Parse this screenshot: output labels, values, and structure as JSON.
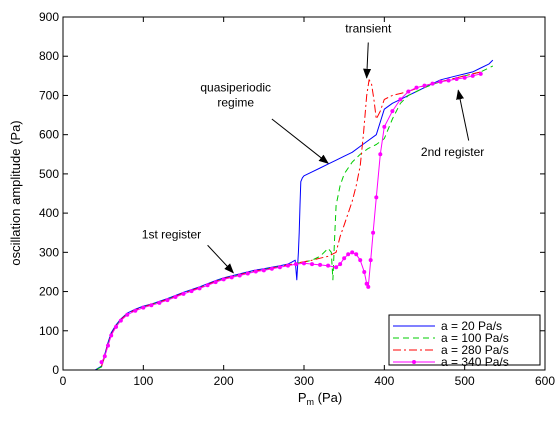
{
  "chart_data": {
    "type": "line",
    "xlabel_main": "P",
    "xlabel_sub": "m",
    "xlabel_unit": " (Pa)",
    "ylabel": "oscillation amplitude (Pa)",
    "xlim": [
      0,
      600
    ],
    "ylim": [
      0,
      900
    ],
    "xticks": [
      0,
      100,
      200,
      300,
      400,
      500,
      600
    ],
    "yticks": [
      0,
      100,
      200,
      300,
      400,
      500,
      600,
      700,
      800,
      900
    ],
    "grid": false,
    "legend_position": "bottom-right",
    "series": [
      {
        "name": "a = 20 Pa/s",
        "color": "#0000ff",
        "dash": "solid",
        "marker": "none",
        "x": [
          30,
          40,
          48,
          52,
          56,
          60,
          66,
          72,
          80,
          90,
          100,
          110,
          120,
          130,
          140,
          150,
          160,
          170,
          180,
          190,
          200,
          210,
          220,
          230,
          240,
          250,
          260,
          270,
          280,
          285,
          289,
          291,
          293,
          294,
          295,
          296,
          298,
          300,
          310,
          320,
          330,
          340,
          350,
          360,
          370,
          380,
          390,
          400,
          410,
          420,
          430,
          440,
          450,
          460,
          470,
          480,
          490,
          500,
          510,
          520,
          530,
          535
        ],
        "y": [
          0,
          0,
          10,
          40,
          70,
          95,
          115,
          130,
          145,
          155,
          163,
          168,
          175,
          182,
          190,
          198,
          205,
          212,
          220,
          228,
          235,
          240,
          245,
          250,
          255,
          258,
          262,
          266,
          270,
          275,
          280,
          230,
          300,
          350,
          420,
          480,
          490,
          495,
          505,
          515,
          525,
          535,
          545,
          555,
          570,
          585,
          600,
          665,
          680,
          690,
          700,
          710,
          720,
          730,
          740,
          745,
          750,
          755,
          760,
          770,
          780,
          790
        ]
      },
      {
        "name": "a = 100 Pa/s",
        "color": "#00cc00",
        "dash": "6,4",
        "marker": "none",
        "x": [
          30,
          40,
          48,
          52,
          56,
          60,
          66,
          72,
          80,
          90,
          100,
          110,
          120,
          130,
          140,
          150,
          160,
          170,
          180,
          190,
          200,
          210,
          220,
          230,
          240,
          250,
          260,
          270,
          280,
          290,
          300,
          310,
          320,
          330,
          334,
          336,
          338,
          340,
          345,
          350,
          360,
          370,
          380,
          390,
          400,
          410,
          420,
          430,
          440,
          450,
          460,
          470,
          480,
          490,
          500,
          510,
          520,
          530,
          535
        ],
        "y": [
          0,
          0,
          8,
          35,
          65,
          90,
          112,
          128,
          143,
          153,
          161,
          167,
          173,
          180,
          188,
          196,
          203,
          210,
          218,
          226,
          233,
          238,
          243,
          248,
          253,
          256,
          260,
          264,
          268,
          272,
          275,
          280,
          290,
          310,
          300,
          230,
          330,
          420,
          470,
          500,
          530,
          550,
          565,
          575,
          590,
          640,
          680,
          700,
          710,
          720,
          728,
          735,
          740,
          745,
          750,
          755,
          760,
          770,
          775
        ]
      },
      {
        "name": "a = 280 Pa/s",
        "color": "#ff0000",
        "dash": "8,3,2,3",
        "marker": "none",
        "x": [
          48,
          52,
          56,
          60,
          66,
          72,
          80,
          90,
          100,
          110,
          120,
          130,
          140,
          150,
          160,
          170,
          180,
          190,
          200,
          210,
          220,
          230,
          240,
          250,
          260,
          270,
          280,
          290,
          300,
          310,
          320,
          330,
          340,
          345,
          350,
          355,
          360,
          365,
          370,
          374,
          378,
          381,
          384,
          387,
          390,
          395,
          400,
          410,
          420,
          430,
          440,
          450,
          460,
          470,
          480,
          490,
          500,
          510,
          520
        ],
        "y": [
          10,
          38,
          66,
          90,
          112,
          128,
          143,
          153,
          161,
          167,
          173,
          180,
          188,
          196,
          203,
          210,
          218,
          226,
          233,
          238,
          243,
          248,
          253,
          256,
          260,
          264,
          268,
          272,
          276,
          280,
          285,
          290,
          300,
          340,
          370,
          400,
          430,
          470,
          520,
          600,
          700,
          740,
          730,
          690,
          640,
          660,
          690,
          700,
          705,
          710,
          718,
          725,
          730,
          735,
          740,
          745,
          750,
          755,
          760
        ]
      },
      {
        "name": "a = 340 Pa/s",
        "color": "#ff00ff",
        "dash": "solid",
        "marker": "dot",
        "x": [
          48,
          52,
          56,
          60,
          66,
          72,
          80,
          90,
          100,
          110,
          120,
          130,
          140,
          150,
          160,
          170,
          180,
          190,
          200,
          210,
          220,
          230,
          240,
          250,
          260,
          270,
          280,
          290,
          300,
          310,
          320,
          330,
          340,
          345,
          350,
          355,
          360,
          365,
          370,
          375,
          378,
          380,
          383,
          386,
          390,
          395,
          400,
          410,
          420,
          430,
          440,
          450,
          460,
          470,
          480,
          490,
          500,
          510,
          520
        ],
        "y": [
          20,
          35,
          62,
          88,
          110,
          126,
          141,
          151,
          159,
          165,
          171,
          178,
          186,
          194,
          201,
          208,
          216,
          224,
          231,
          236,
          241,
          246,
          251,
          254,
          258,
          262,
          266,
          270,
          272,
          270,
          268,
          266,
          262,
          270,
          285,
          295,
          300,
          295,
          280,
          250,
          220,
          212,
          280,
          350,
          440,
          550,
          620,
          660,
          690,
          710,
          720,
          725,
          730,
          735,
          738,
          742,
          745,
          750,
          755
        ]
      }
    ],
    "annotations": [
      {
        "text": "1st register",
        "lines": [
          "1st register"
        ],
        "text_x": 135,
        "text_y": 335,
        "arrow_from": [
          180,
          318
        ],
        "arrow_to": [
          212,
          248
        ]
      },
      {
        "text": "quasiperiodic regime",
        "lines": [
          "quasiperiodic",
          "regime"
        ],
        "text_x": 215,
        "text_y": 710,
        "arrow_from": [
          260,
          640
        ],
        "arrow_to": [
          330,
          527
        ]
      },
      {
        "text": "transient",
        "lines": [
          "transient"
        ],
        "text_x": 380,
        "text_y": 860,
        "arrow_from": [
          380,
          835
        ],
        "arrow_to": [
          378,
          745
        ]
      },
      {
        "text": "2nd register",
        "lines": [
          "2nd register"
        ],
        "text_x": 485,
        "text_y": 545,
        "arrow_from": [
          505,
          585
        ],
        "arrow_to": [
          492,
          713
        ]
      }
    ]
  }
}
